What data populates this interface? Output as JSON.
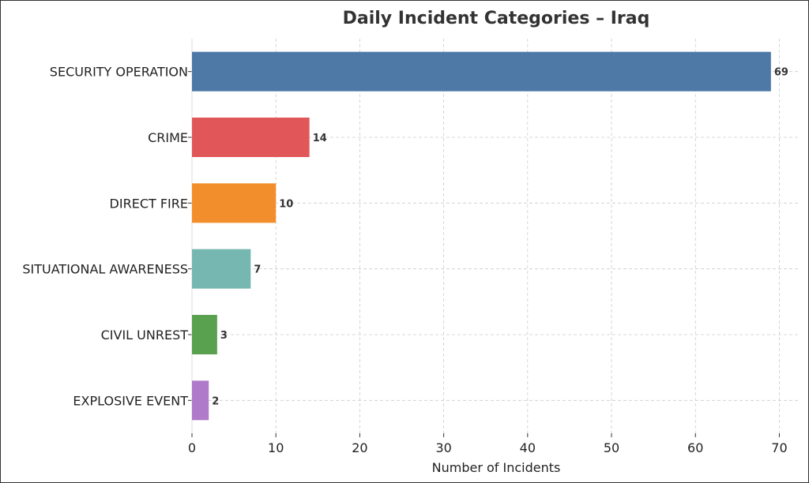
{
  "chart_data": {
    "type": "bar",
    "orientation": "horizontal",
    "title": "Daily Incident Categories – Iraq",
    "xlabel": "Number of Incidents",
    "ylabel": "",
    "xlim": [
      0,
      72.5
    ],
    "xticks": [
      0,
      10,
      20,
      30,
      40,
      50,
      60,
      70
    ],
    "grid": true,
    "categories": [
      "SECURITY OPERATION",
      "CRIME",
      "DIRECT FIRE",
      "SITUATIONAL AWARENESS",
      "CIVIL UNREST",
      "EXPLOSIVE EVENT"
    ],
    "values": [
      69,
      14,
      10,
      7,
      3,
      2
    ],
    "colors": [
      "#4e79a7",
      "#e15759",
      "#f28e2b",
      "#76b7b2",
      "#59a14f",
      "#b07aca"
    ]
  }
}
